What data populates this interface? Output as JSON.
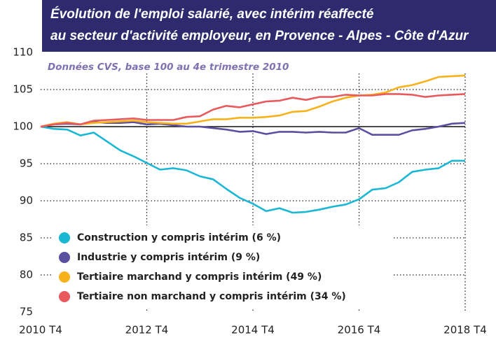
{
  "chart_data": {
    "type": "line",
    "title": [
      "Évolution de l'emploi salarié, avec intérim réaffecté",
      "au secteur d'activité employeur, en Provence - Alpes - Côte d'Azur"
    ],
    "subtitle": "Données CVS, base 100 au 4e trimestre 2010",
    "categories": [
      "2010 T4",
      null,
      null,
      null,
      null,
      null,
      null,
      null,
      "2012 T4",
      null,
      null,
      null,
      null,
      null,
      null,
      null,
      "2014 T4",
      null,
      null,
      null,
      null,
      null,
      null,
      null,
      "2016 T4",
      null,
      null,
      null,
      null,
      null,
      null,
      null,
      "2018 T4"
    ],
    "series": [
      {
        "name": "Construction y compris intérim (6 %)",
        "color": "#1ab7d4",
        "values": [
          100,
          99.7,
          99.6,
          98.8,
          99.2,
          98.0,
          96.8,
          96.0,
          95.1,
          94.2,
          94.4,
          94.1,
          93.3,
          92.9,
          91.6,
          90.4,
          89.6,
          88.6,
          89.0,
          88.4,
          88.5,
          88.8,
          89.2,
          89.5,
          90.2,
          91.5,
          91.7,
          92.5,
          93.9,
          94.2,
          94.4,
          95.4,
          95.4
        ]
      },
      {
        "name": "Industrie y compris intérim (9 %)",
        "color": "#5b4fa0",
        "values": [
          100,
          100.3,
          100.4,
          100.3,
          100.6,
          100.5,
          100.5,
          100.6,
          100.3,
          100.4,
          100.2,
          100.0,
          100.0,
          99.8,
          99.6,
          99.3,
          99.4,
          99.0,
          99.3,
          99.3,
          99.2,
          99.3,
          99.2,
          99.2,
          99.8,
          98.9,
          98.9,
          98.9,
          99.5,
          99.7,
          100.0,
          100.4,
          100.5
        ]
      },
      {
        "name": "Tertiaire marchand y compris intérim (49 %)",
        "color": "#f7b21b",
        "values": [
          100,
          100.4,
          100.6,
          100.3,
          100.5,
          100.6,
          100.7,
          100.8,
          100.6,
          100.5,
          100.4,
          100.4,
          100.7,
          101.0,
          101.0,
          101.2,
          101.2,
          101.3,
          101.5,
          102.0,
          102.1,
          102.7,
          103.4,
          103.9,
          104.2,
          104.3,
          104.6,
          105.3,
          105.6,
          106.1,
          106.7,
          106.8,
          106.9
        ]
      },
      {
        "name": "Tertiaire non marchand y compris intérim (34 %)",
        "color": "#e95a5e",
        "values": [
          100,
          100.3,
          100.5,
          100.3,
          100.8,
          100.9,
          101.0,
          101.1,
          100.9,
          100.9,
          100.9,
          101.3,
          101.4,
          102.3,
          102.8,
          102.6,
          103.0,
          103.4,
          103.5,
          103.9,
          103.6,
          104.0,
          104.0,
          104.3,
          104.2,
          104.2,
          104.4,
          104.4,
          104.3,
          104.0,
          104.2,
          104.3,
          104.4
        ]
      }
    ],
    "ylim": [
      75,
      110
    ],
    "yticks": [
      75,
      80,
      85,
      90,
      95,
      100,
      105,
      110
    ],
    "reference_line": 100,
    "grid": true
  }
}
